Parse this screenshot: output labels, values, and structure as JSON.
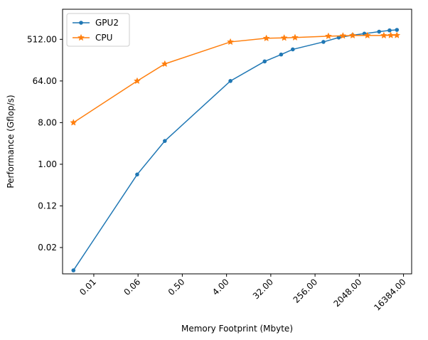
{
  "chart_data": {
    "type": "line",
    "xlabel": "Memory Footprint (Mbyte)",
    "ylabel": "Performance (Gflop/s)",
    "x_scale": "log2",
    "y_scale": "log2",
    "xlim": [
      0.0018,
      24000
    ],
    "ylim": [
      0.0042,
      2300
    ],
    "x_ticks": [
      0.0078125,
      0.0625,
      0.5,
      4,
      32,
      256,
      2048,
      16384
    ],
    "x_tick_labels": [
      "0.01",
      "0.06",
      "0.50",
      "4.00",
      "32.00",
      "256.00",
      "2048.00",
      "16384.00"
    ],
    "y_ticks": [
      0.015625,
      0.125,
      1,
      8,
      64,
      512
    ],
    "y_tick_labels": [
      "0.02",
      "0.12",
      "1.00",
      "8.00",
      "64.00",
      "512.00"
    ],
    "legend_position": "top-left",
    "grid": false,
    "series": [
      {
        "name": "GPU2",
        "color": "#1f77b4",
        "marker": "circle",
        "x": [
          0.003,
          0.06,
          0.22,
          4.8,
          24,
          52,
          90,
          380,
          780,
          1500,
          2600,
          5200,
          8500,
          12000
        ],
        "y": [
          0.005,
          0.6,
          3.2,
          64,
          170,
          240,
          310,
          450,
          560,
          630,
          680,
          750,
          800,
          820
        ]
      },
      {
        "name": "CPU",
        "color": "#ff7f0e",
        "marker": "star",
        "x": [
          0.003,
          0.06,
          0.22,
          4.8,
          26,
          60,
          100,
          480,
          950,
          1500,
          3000,
          6500,
          9000,
          12000
        ],
        "y": [
          8,
          64,
          150,
          450,
          540,
          550,
          560,
          600,
          610,
          620,
          620,
          620,
          625,
          625
        ]
      }
    ]
  }
}
